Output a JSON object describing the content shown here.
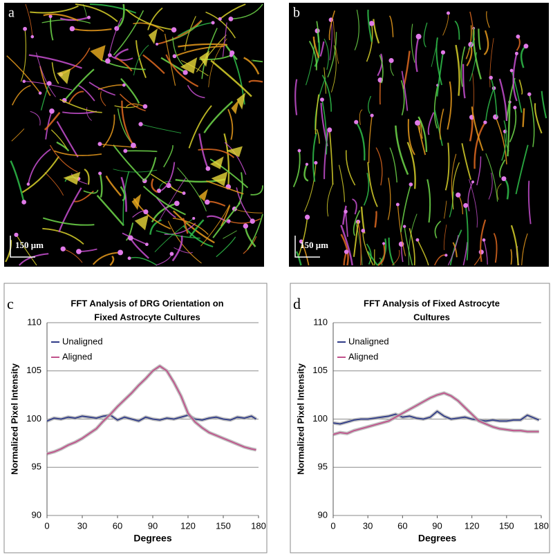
{
  "images": [
    {
      "label": "a",
      "scale_bar": "150 μm"
    },
    {
      "label": "b",
      "scale_bar": "150 μm"
    }
  ],
  "chart_data": [
    {
      "type": "line",
      "label": "c",
      "title": [
        "FFT Analysis of DRG Orientation on",
        "Fixed Astrocyte Cultures"
      ],
      "x_label": "Degrees",
      "y_label": "Normalized Pixel Intensity",
      "xlim": [
        0,
        180
      ],
      "xticks": [
        0,
        30,
        60,
        90,
        120,
        150,
        180
      ],
      "ylim": [
        90,
        110
      ],
      "yticks": [
        90,
        95,
        100,
        105,
        110
      ],
      "grid": true,
      "legend": "upper-left",
      "x": [
        0,
        6,
        12,
        18,
        24,
        30,
        36,
        42,
        48,
        54,
        60,
        66,
        72,
        78,
        84,
        90,
        96,
        102,
        108,
        114,
        120,
        126,
        132,
        138,
        144,
        150,
        156,
        162,
        168,
        174,
        178
      ],
      "series": [
        {
          "name": "Unaligned",
          "color": "#2e3a87",
          "values": [
            99.8,
            100.1,
            100.0,
            100.2,
            100.1,
            100.3,
            100.2,
            100.1,
            100.3,
            100.4,
            99.9,
            100.2,
            100.0,
            99.8,
            100.2,
            100.0,
            99.9,
            100.1,
            100.0,
            100.2,
            100.4,
            100.0,
            99.9,
            100.1,
            100.2,
            100.0,
            99.9,
            100.2,
            100.1,
            100.3,
            100.0
          ]
        },
        {
          "name": "Aligned",
          "color": "#c0508a",
          "values": [
            96.4,
            96.6,
            96.9,
            97.3,
            97.6,
            98.0,
            98.5,
            99.0,
            99.8,
            100.5,
            101.3,
            102.0,
            102.7,
            103.5,
            104.2,
            105.0,
            105.5,
            105.0,
            103.8,
            102.4,
            100.6,
            99.7,
            99.1,
            98.6,
            98.3,
            98.0,
            97.7,
            97.4,
            97.1,
            96.9,
            96.8
          ]
        }
      ]
    },
    {
      "type": "line",
      "label": "d",
      "title": [
        "FFT Analysis of Fixed Astrocyte",
        "Cultures"
      ],
      "x_label": "Degrees",
      "y_label": "Normalized Pixel Intensity",
      "xlim": [
        0,
        180
      ],
      "xticks": [
        0,
        30,
        60,
        90,
        120,
        150,
        180
      ],
      "ylim": [
        90,
        110
      ],
      "yticks": [
        90,
        95,
        100,
        105,
        110
      ],
      "grid": true,
      "legend": "upper-left",
      "x": [
        0,
        6,
        12,
        18,
        24,
        30,
        36,
        42,
        48,
        54,
        60,
        66,
        72,
        78,
        84,
        90,
        96,
        102,
        108,
        114,
        120,
        126,
        132,
        138,
        144,
        150,
        156,
        162,
        168,
        174,
        178
      ],
      "series": [
        {
          "name": "Unaligned",
          "color": "#2e3a87",
          "values": [
            99.6,
            99.5,
            99.7,
            99.9,
            100.0,
            100.0,
            100.1,
            100.2,
            100.3,
            100.5,
            100.2,
            100.3,
            100.1,
            100.0,
            100.2,
            100.8,
            100.3,
            100.0,
            100.1,
            100.2,
            100.0,
            99.9,
            99.8,
            99.9,
            99.8,
            99.8,
            99.9,
            99.9,
            100.4,
            100.1,
            99.9
          ]
        },
        {
          "name": "Aligned",
          "color": "#c0508a",
          "values": [
            98.4,
            98.6,
            98.5,
            98.8,
            99.0,
            99.2,
            99.4,
            99.6,
            99.8,
            100.2,
            100.6,
            101.0,
            101.4,
            101.8,
            102.2,
            102.5,
            102.7,
            102.4,
            101.9,
            101.2,
            100.5,
            99.8,
            99.5,
            99.2,
            99.0,
            98.9,
            98.8,
            98.8,
            98.7,
            98.7,
            98.7
          ]
        }
      ]
    }
  ]
}
